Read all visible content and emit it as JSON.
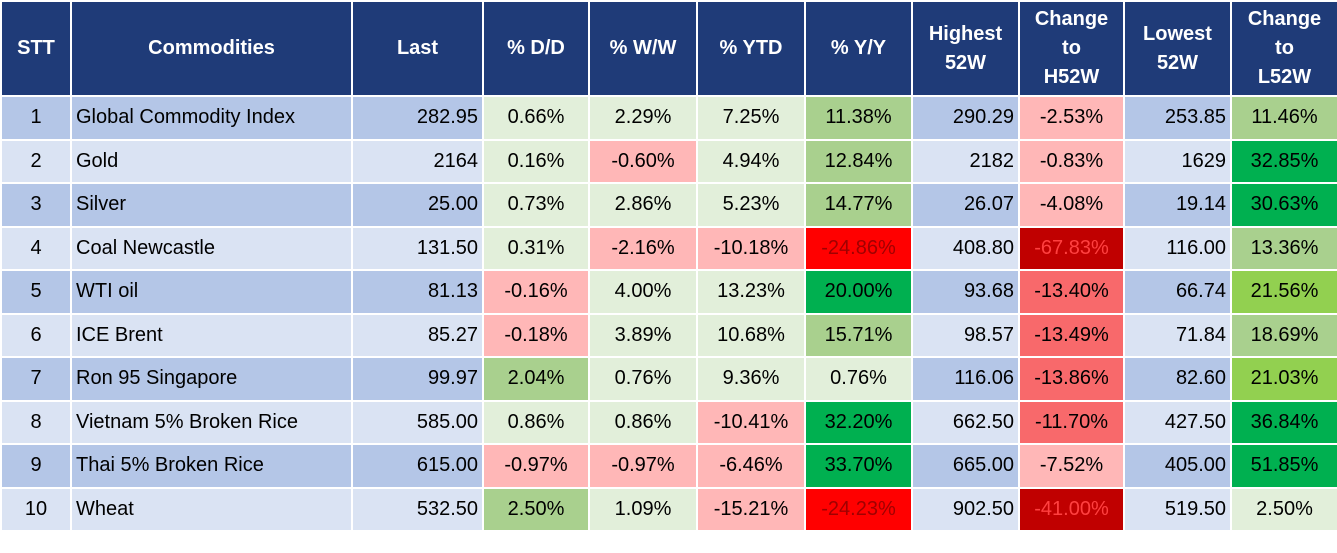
{
  "table": {
    "header": [
      "STT",
      "Commodities",
      "Last",
      "% D/D",
      "% W/W",
      "% YTD",
      "% Y/Y",
      "Highest 52W",
      "Change to H52W",
      "Lowest 52W",
      "Change to L52W"
    ],
    "rows": [
      [
        "1",
        "Global Commodity Index",
        "282.95",
        "0.66%",
        "2.29%",
        "7.25%",
        "11.38%",
        "290.29",
        "-2.53%",
        "253.85",
        "11.46%"
      ],
      [
        "2",
        "Gold",
        "2164",
        "0.16%",
        "-0.60%",
        "4.94%",
        "12.84%",
        "2182",
        "-0.83%",
        "1629",
        "32.85%"
      ],
      [
        "3",
        "Silver",
        "25.00",
        "0.73%",
        "2.86%",
        "5.23%",
        "14.77%",
        "26.07",
        "-4.08%",
        "19.14",
        "30.63%"
      ],
      [
        "4",
        "Coal Newcastle",
        "131.50",
        "0.31%",
        "-2.16%",
        "-10.18%",
        "-24.86%",
        "408.80",
        "-67.83%",
        "116.00",
        "13.36%"
      ],
      [
        "5",
        "WTI oil",
        "81.13",
        "-0.16%",
        "4.00%",
        "13.23%",
        "20.00%",
        "93.68",
        "-13.40%",
        "66.74",
        "21.56%"
      ],
      [
        "6",
        "ICE Brent",
        "85.27",
        "-0.18%",
        "3.89%",
        "10.68%",
        "15.71%",
        "98.57",
        "-13.49%",
        "71.84",
        "18.69%"
      ],
      [
        "7",
        "Ron 95 Singapore",
        "99.97",
        "2.04%",
        "0.76%",
        "9.36%",
        "0.76%",
        "116.06",
        "-13.86%",
        "82.60",
        "21.03%"
      ],
      [
        "8",
        "Vietnam 5% Broken Rice",
        "585.00",
        "0.86%",
        "0.86%",
        "-10.41%",
        "32.20%",
        "662.50",
        "-11.70%",
        "427.50",
        "36.84%"
      ],
      [
        "9",
        "Thai 5% Broken Rice",
        "615.00",
        "-0.97%",
        "-0.97%",
        "-6.46%",
        "33.70%",
        "665.00",
        "-7.52%",
        "405.00",
        "51.85%"
      ],
      [
        "10",
        "Wheat",
        "532.50",
        "2.50%",
        "1.09%",
        "-15.21%",
        "-24.23%",
        "902.50",
        "-41.00%",
        "519.50",
        "2.50%"
      ]
    ],
    "cell_colors": [
      [
        null,
        null,
        null,
        "#e2efda",
        "#e2efda",
        "#e2efda",
        "#a9d08e",
        null,
        "#ffb7b7",
        null,
        "#a9d08e"
      ],
      [
        null,
        null,
        null,
        "#e2efda",
        "#ffb7b7",
        "#e2efda",
        "#a9d08e",
        null,
        "#ffb7b7",
        null,
        "#00b050"
      ],
      [
        null,
        null,
        null,
        "#e2efda",
        "#e2efda",
        "#e2efda",
        "#a9d08e",
        null,
        "#ffb7b7",
        null,
        "#00b050"
      ],
      [
        null,
        null,
        null,
        "#e2efda",
        "#ffb7b7",
        "#ffb7b7",
        "#ff0000",
        null,
        "#c00000",
        null,
        "#a9d08e"
      ],
      [
        null,
        null,
        null,
        "#ffb7b7",
        "#e2efda",
        "#e2efda",
        "#00b050",
        null,
        "#f8696b",
        null,
        "#92d050"
      ],
      [
        null,
        null,
        null,
        "#ffb7b7",
        "#e2efda",
        "#e2efda",
        "#a9d08e",
        null,
        "#f8696b",
        null,
        "#a9d08e"
      ],
      [
        null,
        null,
        null,
        "#a9d08e",
        "#e2efda",
        "#e2efda",
        "#e2efda",
        null,
        "#f8696b",
        null,
        "#92d050"
      ],
      [
        null,
        null,
        null,
        "#e2efda",
        "#e2efda",
        "#ffb7b7",
        "#00b050",
        null,
        "#f8696b",
        null,
        "#00b050"
      ],
      [
        null,
        null,
        null,
        "#ffb7b7",
        "#ffb7b7",
        "#ffb7b7",
        "#00b050",
        null,
        "#ffb7b7",
        null,
        "#00b050"
      ],
      [
        null,
        null,
        null,
        "#a9d08e",
        "#e2efda",
        "#ffb7b7",
        "#ff0000",
        null,
        "#c00000",
        null,
        "#e2efda"
      ]
    ]
  }
}
